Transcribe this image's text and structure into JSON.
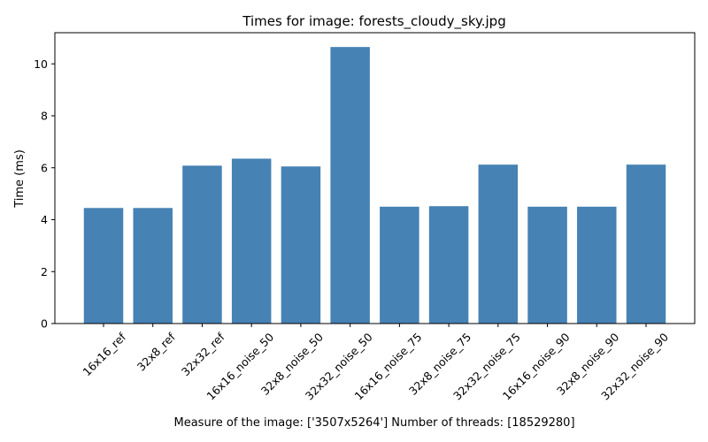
{
  "chart_data": {
    "type": "bar",
    "title": "Times for image: forests_cloudy_sky.jpg",
    "xlabel": "Measure of the image: ['3507x5264'] Number of threads: [18529280]",
    "ylabel": "Time (ms)",
    "categories": [
      "16x16_ref",
      "32x8_ref",
      "32x32_ref",
      "16x16_noise_50",
      "32x8_noise_50",
      "32x32_noise_50",
      "16x16_noise_75",
      "32x8_noise_75",
      "32x32_noise_75",
      "16x16_noise_90",
      "32x8_noise_90",
      "32x32_noise_90"
    ],
    "values": [
      4.45,
      4.45,
      6.08,
      6.35,
      6.05,
      10.65,
      4.5,
      4.52,
      6.12,
      4.5,
      4.5,
      6.12
    ],
    "ylim": [
      0,
      11.2
    ],
    "yticks": [
      0,
      2,
      4,
      6,
      8,
      10
    ],
    "bar_color": "#4682b4",
    "grid": false,
    "legend": "none"
  }
}
